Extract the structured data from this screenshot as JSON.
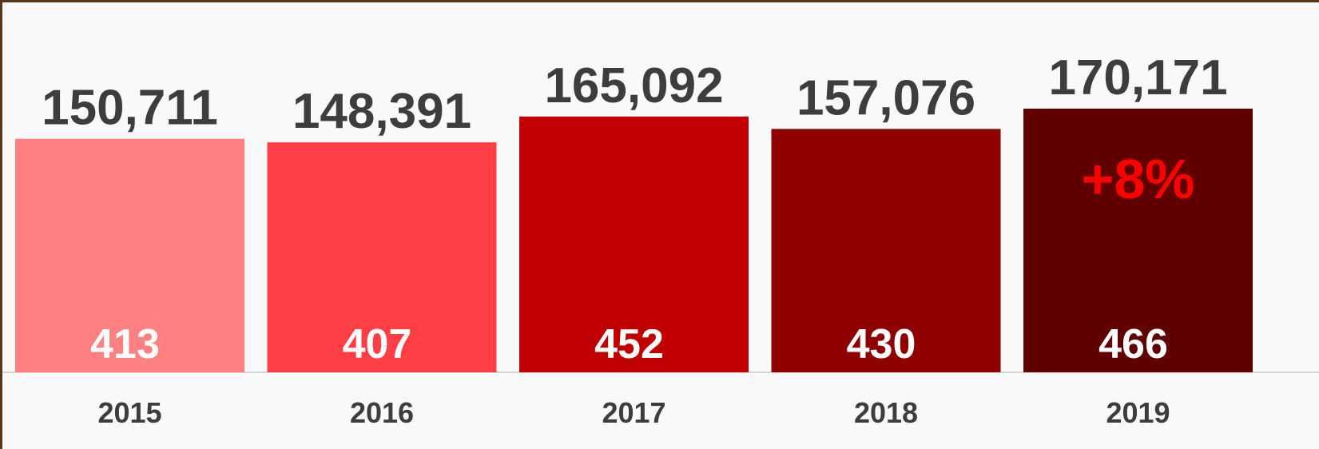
{
  "chart_data": {
    "type": "bar",
    "title": "",
    "xlabel": "",
    "ylabel": "",
    "categories": [
      "2015",
      "2016",
      "2017",
      "2018",
      "2019"
    ],
    "values": [
      150711,
      148391,
      165092,
      157076,
      170171
    ],
    "value_labels": [
      "150,711",
      "148,391",
      "165,092",
      "157,076",
      "170,171"
    ],
    "secondary_values": [
      413,
      407,
      452,
      430,
      466
    ],
    "bar_colors": [
      "#ff8080",
      "#ff3f44",
      "#c00000",
      "#8e0000",
      "#600000"
    ],
    "annotation": {
      "text": "+8%",
      "category": "2019",
      "color": "#ff0000"
    },
    "ylim": [
      0,
      170171
    ],
    "grid": false,
    "legend": "none"
  }
}
